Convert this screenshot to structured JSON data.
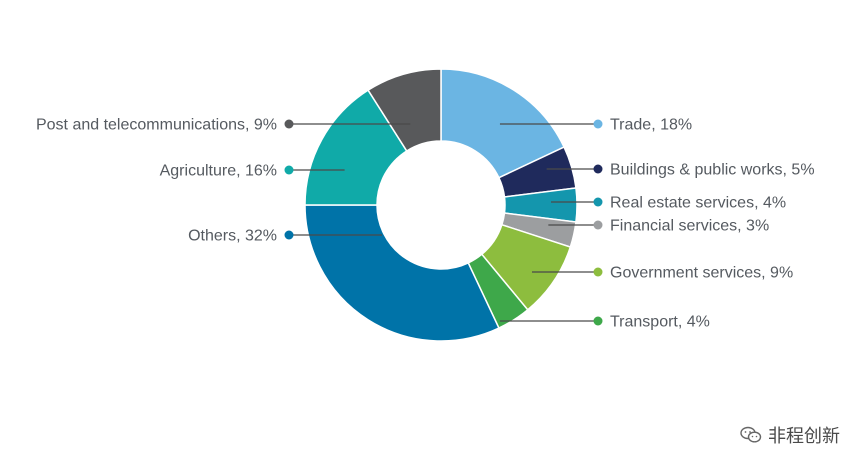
{
  "chart_data": {
    "type": "pie",
    "donut": true,
    "start_angle_deg": 0,
    "direction": "clockwise",
    "slices": [
      {
        "label": "Trade, 18%",
        "name": "Trade",
        "value": 18,
        "color": "#6bb5e3",
        "side": "right"
      },
      {
        "label": "Buildings & public works, 5%",
        "name": "Buildings & public works",
        "value": 5,
        "color": "#1f2a5c",
        "side": "right"
      },
      {
        "label": "Real estate services, 4%",
        "name": "Real estate services",
        "value": 4,
        "color": "#1496ad",
        "side": "right"
      },
      {
        "label": "Financial services, 3%",
        "name": "Financial services",
        "value": 3,
        "color": "#9c9ea0",
        "side": "right"
      },
      {
        "label": "Government services, 9%",
        "name": "Government services",
        "value": 9,
        "color": "#8dbd3e",
        "side": "right"
      },
      {
        "label": "Transport, 4%",
        "name": "Transport",
        "value": 4,
        "color": "#3ea84a",
        "side": "right"
      },
      {
        "label": "Others, 32%",
        "name": "Others",
        "value": 32,
        "color": "#0073a8",
        "side": "left"
      },
      {
        "label": "Agriculture, 16%",
        "name": "Agriculture",
        "value": 16,
        "color": "#10aaa8",
        "side": "left"
      },
      {
        "label": "Post and telecommunications, 9%",
        "name": "Post and telecommunications",
        "value": 9,
        "color": "#58595b",
        "side": "left"
      }
    ]
  },
  "watermark": {
    "text": "非程创新",
    "icon": "wechat-icon"
  }
}
